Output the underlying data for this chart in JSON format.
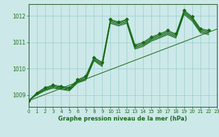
{
  "title": "Graphe pression niveau de la mer (hPa)",
  "bg_color": "#cce8e8",
  "grid_color": "#99cccc",
  "line_color": "#1a6b1a",
  "spine_color": "#336633",
  "xlim": [
    0,
    23
  ],
  "ylim": [
    1008.55,
    1012.45
  ],
  "yticks": [
    1009,
    1010,
    1011,
    1012
  ],
  "xticks": [
    0,
    1,
    2,
    3,
    4,
    5,
    6,
    7,
    8,
    9,
    10,
    11,
    12,
    13,
    14,
    15,
    16,
    17,
    18,
    19,
    20,
    21,
    22,
    23
  ],
  "series": [
    [
      1008.78,
      1009.08,
      1009.28,
      1009.38,
      1009.33,
      1009.28,
      1009.58,
      1009.72,
      1010.43,
      1010.24,
      1011.87,
      1011.77,
      1011.87,
      1010.9,
      1011.0,
      1011.2,
      1011.32,
      1011.45,
      1011.32,
      1012.22,
      1011.97,
      1011.52,
      1011.45
    ],
    [
      1008.78,
      1009.06,
      1009.25,
      1009.35,
      1009.3,
      1009.25,
      1009.55,
      1009.68,
      1010.4,
      1010.2,
      1011.84,
      1011.74,
      1011.84,
      1010.86,
      1010.96,
      1011.16,
      1011.28,
      1011.41,
      1011.28,
      1012.18,
      1011.93,
      1011.48,
      1011.41
    ],
    [
      1008.78,
      1009.04,
      1009.22,
      1009.32,
      1009.27,
      1009.22,
      1009.52,
      1009.64,
      1010.36,
      1010.16,
      1011.8,
      1011.7,
      1011.8,
      1010.82,
      1010.92,
      1011.12,
      1011.24,
      1011.37,
      1011.24,
      1012.14,
      1011.89,
      1011.44,
      1011.37
    ],
    [
      1008.78,
      1009.02,
      1009.19,
      1009.29,
      1009.24,
      1009.19,
      1009.49,
      1009.6,
      1010.33,
      1010.12,
      1011.76,
      1011.66,
      1011.76,
      1010.78,
      1010.88,
      1011.08,
      1011.2,
      1011.33,
      1011.2,
      1012.1,
      1011.85,
      1011.4,
      1011.33
    ],
    [
      1008.78,
      1009.0,
      1009.16,
      1009.26,
      1009.21,
      1009.16,
      1009.46,
      1009.56,
      1010.3,
      1010.08,
      1011.72,
      1011.62,
      1011.72,
      1010.74,
      1010.84,
      1011.04,
      1011.16,
      1011.29,
      1011.16,
      1012.06,
      1011.8,
      1011.36,
      1011.29
    ]
  ],
  "trend_x": [
    0,
    23
  ],
  "trend_y": [
    1008.78,
    1011.5
  ],
  "marker_series": 0
}
